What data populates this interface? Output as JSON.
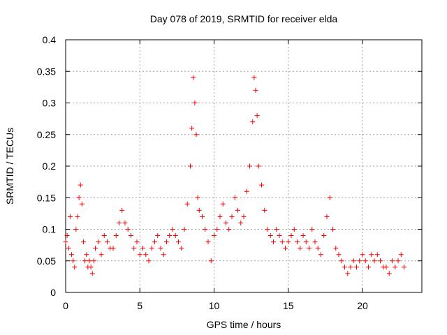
{
  "chart_data": {
    "type": "scatter",
    "title": "Day 078 of 2019, SRMTID for receiver elda",
    "xlabel": "GPS time / hours",
    "ylabel": "SRMTID / TECUs",
    "xlim": [
      0,
      24
    ],
    "ylim": [
      0,
      0.4
    ],
    "xticks": [
      0,
      5,
      10,
      15,
      20
    ],
    "xtick_labels": [
      "0",
      "5",
      "10",
      "15",
      "20"
    ],
    "yticks": [
      0,
      0.05,
      0.1,
      0.15,
      0.2,
      0.25,
      0.3,
      0.35,
      0.4
    ],
    "ytick_labels": [
      "0",
      "0.05",
      "0.1",
      "0.15",
      "0.2",
      "0.25",
      "0.3",
      "0.35",
      "0.4"
    ],
    "grid": true,
    "marker": "+",
    "series": [
      {
        "name": "SRMTID",
        "color": "#ff0000",
        "x": [
          0.0,
          0.1,
          0.2,
          0.3,
          0.4,
          0.5,
          0.6,
          0.7,
          0.8,
          0.9,
          1.0,
          1.1,
          1.2,
          1.3,
          1.4,
          1.5,
          1.6,
          1.7,
          1.8,
          1.9,
          2.0,
          2.2,
          2.4,
          2.6,
          2.8,
          3.0,
          3.2,
          3.4,
          3.6,
          3.8,
          4.0,
          4.2,
          4.4,
          4.6,
          4.8,
          5.0,
          5.2,
          5.4,
          5.6,
          5.8,
          6.0,
          6.2,
          6.4,
          6.6,
          6.8,
          7.0,
          7.2,
          7.4,
          7.6,
          7.8,
          8.0,
          8.2,
          8.4,
          8.5,
          8.6,
          8.7,
          8.8,
          8.9,
          9.0,
          9.2,
          9.4,
          9.6,
          9.8,
          10.0,
          10.2,
          10.4,
          10.6,
          10.8,
          11.0,
          11.2,
          11.4,
          11.6,
          11.8,
          12.0,
          12.2,
          12.4,
          12.6,
          12.7,
          12.8,
          12.9,
          13.0,
          13.2,
          13.4,
          13.6,
          13.8,
          14.0,
          14.2,
          14.4,
          14.6,
          14.8,
          15.0,
          15.2,
          15.4,
          15.6,
          15.8,
          16.0,
          16.2,
          16.4,
          16.6,
          16.8,
          17.0,
          17.2,
          17.4,
          17.6,
          17.8,
          18.0,
          18.2,
          18.4,
          18.6,
          18.8,
          19.0,
          19.2,
          19.4,
          19.6,
          19.8,
          20.0,
          20.2,
          20.4,
          20.6,
          20.8,
          21.0,
          21.2,
          21.4,
          21.6,
          21.8,
          22.0,
          22.2,
          22.4,
          22.6,
          22.8
        ],
        "y": [
          0.08,
          0.09,
          0.07,
          0.12,
          0.06,
          0.05,
          0.04,
          0.1,
          0.12,
          0.15,
          0.17,
          0.14,
          0.08,
          0.05,
          0.06,
          0.04,
          0.05,
          0.04,
          0.03,
          0.05,
          0.07,
          0.08,
          0.06,
          0.09,
          0.08,
          0.07,
          0.07,
          0.09,
          0.11,
          0.13,
          0.11,
          0.1,
          0.09,
          0.07,
          0.08,
          0.06,
          0.07,
          0.06,
          0.05,
          0.07,
          0.08,
          0.09,
          0.07,
          0.06,
          0.08,
          0.09,
          0.1,
          0.09,
          0.08,
          0.07,
          0.1,
          0.14,
          0.2,
          0.26,
          0.34,
          0.3,
          0.25,
          0.15,
          0.13,
          0.12,
          0.1,
          0.08,
          0.05,
          0.09,
          0.1,
          0.12,
          0.14,
          0.11,
          0.1,
          0.12,
          0.15,
          0.13,
          0.11,
          0.12,
          0.16,
          0.2,
          0.27,
          0.34,
          0.32,
          0.28,
          0.2,
          0.17,
          0.13,
          0.1,
          0.09,
          0.08,
          0.1,
          0.09,
          0.08,
          0.07,
          0.08,
          0.09,
          0.1,
          0.08,
          0.07,
          0.09,
          0.08,
          0.07,
          0.1,
          0.08,
          0.07,
          0.06,
          0.09,
          0.12,
          0.15,
          0.1,
          0.07,
          0.06,
          0.05,
          0.04,
          0.03,
          0.04,
          0.05,
          0.04,
          0.05,
          0.06,
          0.05,
          0.04,
          0.06,
          0.05,
          0.06,
          0.05,
          0.04,
          0.04,
          0.03,
          0.05,
          0.04,
          0.05,
          0.06,
          0.04
        ]
      }
    ]
  }
}
